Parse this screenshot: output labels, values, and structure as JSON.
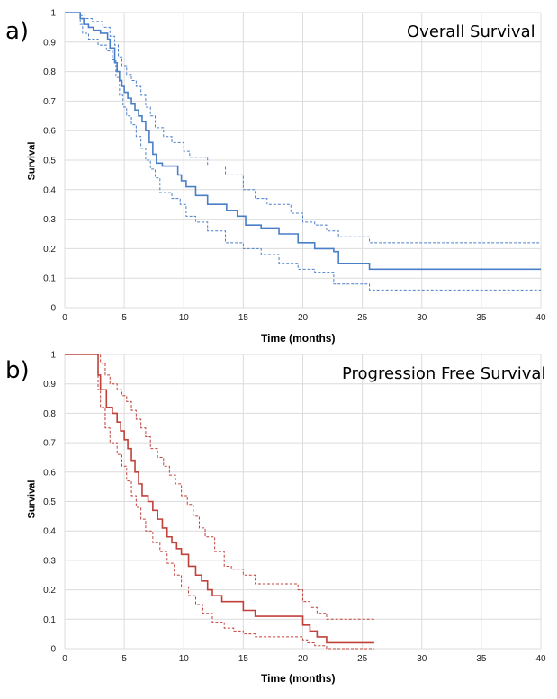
{
  "chart_data": [
    {
      "panel_label": "a)",
      "type": "line",
      "step": true,
      "title": "Overall Survival",
      "xlabel": "Time (months)",
      "ylabel": "Survival",
      "xlim": [
        0,
        40
      ],
      "ylim": [
        0,
        1
      ],
      "xticks": [
        0,
        5,
        10,
        15,
        20,
        25,
        30,
        35,
        40
      ],
      "yticks": [
        0,
        0.1,
        0.2,
        0.3,
        0.4,
        0.5,
        0.6,
        0.7,
        0.8,
        0.9,
        1
      ],
      "grid": true,
      "color": "#4a7fc8",
      "series": [
        {
          "style": "solid",
          "x": [
            0,
            1.3,
            1.6,
            2.0,
            2.4,
            3.0,
            3.6,
            3.8,
            4.2,
            4.4,
            4.6,
            4.8,
            5.0,
            5.3,
            5.6,
            5.9,
            6.2,
            6.5,
            6.8,
            7.1,
            7.4,
            7.7,
            8.2,
            9.5,
            9.8,
            10.2,
            11.0,
            12.0,
            13.6,
            14.5,
            15.2,
            16.5,
            18.0,
            19.6,
            21.0,
            22.6,
            23.0,
            25.6,
            40
          ],
          "y": [
            1,
            0.98,
            0.96,
            0.95,
            0.94,
            0.93,
            0.91,
            0.88,
            0.83,
            0.8,
            0.77,
            0.75,
            0.73,
            0.71,
            0.69,
            0.67,
            0.65,
            0.63,
            0.6,
            0.56,
            0.52,
            0.49,
            0.48,
            0.45,
            0.43,
            0.41,
            0.38,
            0.35,
            0.33,
            0.31,
            0.28,
            0.27,
            0.25,
            0.22,
            0.2,
            0.19,
            0.15,
            0.13,
            0.13
          ]
        },
        {
          "style": "dashed",
          "x": [
            0,
            1.3,
            1.7,
            2.3,
            3.2,
            3.8,
            4.2,
            4.5,
            4.8,
            5.2,
            5.6,
            6.0,
            6.4,
            6.8,
            7.2,
            7.6,
            8.3,
            9.0,
            10.0,
            10.5,
            12.0,
            13.5,
            15.0,
            16.0,
            17.0,
            19.0,
            20.0,
            21.0,
            22.0,
            23.0,
            25.6,
            40
          ],
          "y": [
            1,
            0.99,
            0.98,
            0.97,
            0.95,
            0.92,
            0.89,
            0.85,
            0.82,
            0.79,
            0.77,
            0.75,
            0.72,
            0.68,
            0.65,
            0.61,
            0.58,
            0.56,
            0.53,
            0.51,
            0.48,
            0.45,
            0.4,
            0.37,
            0.35,
            0.32,
            0.29,
            0.28,
            0.26,
            0.24,
            0.22,
            0.22
          ]
        },
        {
          "style": "dashed",
          "x": [
            0,
            1.3,
            1.5,
            2.0,
            2.8,
            3.5,
            4.0,
            4.3,
            4.6,
            4.9,
            5.2,
            5.6,
            6.0,
            6.4,
            6.8,
            7.2,
            7.6,
            8.0,
            9.0,
            9.7,
            10.2,
            11.0,
            12.0,
            13.5,
            15.0,
            16.5,
            18.0,
            19.6,
            21.0,
            22.6,
            25.6,
            40
          ],
          "y": [
            1,
            0.96,
            0.93,
            0.91,
            0.89,
            0.87,
            0.84,
            0.78,
            0.72,
            0.68,
            0.65,
            0.62,
            0.58,
            0.54,
            0.5,
            0.47,
            0.44,
            0.39,
            0.37,
            0.35,
            0.31,
            0.29,
            0.26,
            0.22,
            0.2,
            0.18,
            0.15,
            0.13,
            0.12,
            0.08,
            0.06,
            0.06
          ]
        }
      ]
    },
    {
      "panel_label": "b)",
      "type": "line",
      "step": true,
      "title": "Progression Free Survival",
      "xlabel": "Time (months)",
      "ylabel": "Survival",
      "xlim": [
        0,
        40
      ],
      "ylim": [
        0,
        1
      ],
      "xticks": [
        0,
        5,
        10,
        15,
        20,
        25,
        30,
        35,
        40
      ],
      "yticks": [
        0,
        0.1,
        0.2,
        0.3,
        0.4,
        0.5,
        0.6,
        0.7,
        0.8,
        0.9,
        1
      ],
      "grid": true,
      "color": "#c0413a",
      "series": [
        {
          "style": "solid",
          "x": [
            0,
            2.8,
            3.0,
            3.5,
            4.0,
            4.4,
            4.7,
            5.0,
            5.3,
            5.6,
            5.9,
            6.2,
            6.5,
            7.0,
            7.4,
            7.8,
            8.2,
            8.6,
            9.0,
            9.4,
            9.8,
            10.4,
            11.0,
            11.5,
            12.0,
            12.4,
            13.2,
            15.0,
            16.0,
            20.0,
            20.6,
            21.2,
            22.0,
            26.0
          ],
          "y": [
            1,
            0.93,
            0.88,
            0.82,
            0.8,
            0.77,
            0.74,
            0.71,
            0.68,
            0.64,
            0.6,
            0.56,
            0.52,
            0.5,
            0.47,
            0.44,
            0.41,
            0.38,
            0.36,
            0.34,
            0.32,
            0.28,
            0.25,
            0.23,
            0.2,
            0.18,
            0.16,
            0.13,
            0.11,
            0.08,
            0.06,
            0.04,
            0.02,
            0.02
          ]
        },
        {
          "style": "dashed",
          "x": [
            0,
            3.0,
            3.4,
            3.8,
            4.4,
            4.8,
            5.2,
            5.6,
            6.0,
            6.4,
            6.8,
            7.2,
            7.8,
            8.3,
            8.8,
            9.3,
            9.8,
            10.3,
            10.8,
            11.3,
            11.8,
            12.6,
            13.4,
            14.0,
            15.0,
            16.0,
            19.6,
            20.0,
            20.6,
            21.2,
            22.0,
            26.0
          ],
          "y": [
            1,
            0.97,
            0.93,
            0.9,
            0.88,
            0.86,
            0.84,
            0.81,
            0.78,
            0.75,
            0.72,
            0.68,
            0.65,
            0.62,
            0.59,
            0.56,
            0.52,
            0.49,
            0.45,
            0.41,
            0.38,
            0.33,
            0.28,
            0.27,
            0.25,
            0.22,
            0.2,
            0.16,
            0.14,
            0.12,
            0.1,
            0.1
          ]
        },
        {
          "style": "dashed",
          "x": [
            0,
            2.8,
            3.0,
            3.4,
            3.8,
            4.4,
            4.8,
            5.2,
            5.6,
            6.0,
            6.4,
            6.8,
            7.4,
            8.0,
            8.6,
            9.2,
            9.8,
            10.4,
            11.0,
            11.6,
            12.4,
            13.4,
            14.2,
            15.0,
            16.0,
            20.0,
            20.4,
            21.0,
            22.0,
            26.0
          ],
          "y": [
            1,
            0.88,
            0.82,
            0.75,
            0.7,
            0.66,
            0.62,
            0.57,
            0.52,
            0.48,
            0.44,
            0.4,
            0.36,
            0.33,
            0.29,
            0.25,
            0.21,
            0.18,
            0.15,
            0.12,
            0.09,
            0.07,
            0.06,
            0.05,
            0.04,
            0.03,
            0.02,
            0.01,
            0.0,
            0.0
          ]
        }
      ]
    }
  ]
}
